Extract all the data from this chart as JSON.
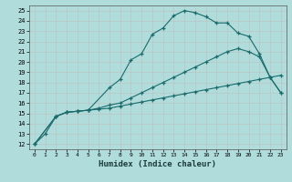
{
  "xlabel": "Humidex (Indice chaleur)",
  "xlim": [
    -0.5,
    23.5
  ],
  "ylim": [
    11.5,
    25.5
  ],
  "xticks": [
    0,
    1,
    2,
    3,
    4,
    5,
    6,
    7,
    8,
    9,
    10,
    11,
    12,
    13,
    14,
    15,
    16,
    17,
    18,
    19,
    20,
    21,
    22,
    23
  ],
  "yticks": [
    12,
    13,
    14,
    15,
    16,
    17,
    18,
    19,
    20,
    21,
    22,
    23,
    24,
    25
  ],
  "bg_color": "#b0dcdc",
  "grid_color": "#c8c8c8",
  "line_color": "#1a6b6b",
  "lines": [
    {
      "x": [
        0,
        1,
        2,
        3,
        4,
        5,
        6,
        7,
        8,
        9,
        10,
        11,
        12,
        13,
        14,
        15,
        16,
        17,
        18,
        19,
        20,
        21,
        22,
        23
      ],
      "y": [
        12.0,
        13.0,
        14.7,
        15.1,
        15.2,
        15.3,
        15.4,
        15.5,
        15.7,
        15.9,
        16.1,
        16.3,
        16.5,
        16.7,
        16.9,
        17.1,
        17.3,
        17.5,
        17.7,
        17.9,
        18.1,
        18.3,
        18.5,
        18.7
      ]
    },
    {
      "x": [
        0,
        2,
        3,
        4,
        5,
        6,
        7,
        8,
        9,
        10,
        11,
        12,
        13,
        14,
        15,
        16,
        17,
        18,
        19,
        20,
        21,
        22,
        23
      ],
      "y": [
        12.0,
        14.7,
        15.1,
        15.2,
        15.3,
        15.5,
        15.8,
        16.0,
        16.5,
        17.0,
        17.5,
        18.0,
        18.5,
        19.0,
        19.5,
        20.0,
        20.5,
        21.0,
        21.3,
        21.0,
        20.5,
        18.5,
        17.0
      ]
    },
    {
      "x": [
        0,
        2,
        3,
        4,
        5,
        7,
        8,
        9,
        10,
        11,
        12,
        13,
        14,
        15,
        16,
        17,
        18,
        19,
        20,
        21,
        22,
        23
      ],
      "y": [
        12.0,
        14.7,
        15.1,
        15.2,
        15.3,
        17.5,
        18.3,
        20.2,
        20.8,
        22.7,
        23.3,
        24.5,
        25.0,
        24.8,
        24.4,
        23.8,
        23.8,
        22.8,
        22.5,
        20.8,
        18.5,
        17.0
      ]
    }
  ]
}
